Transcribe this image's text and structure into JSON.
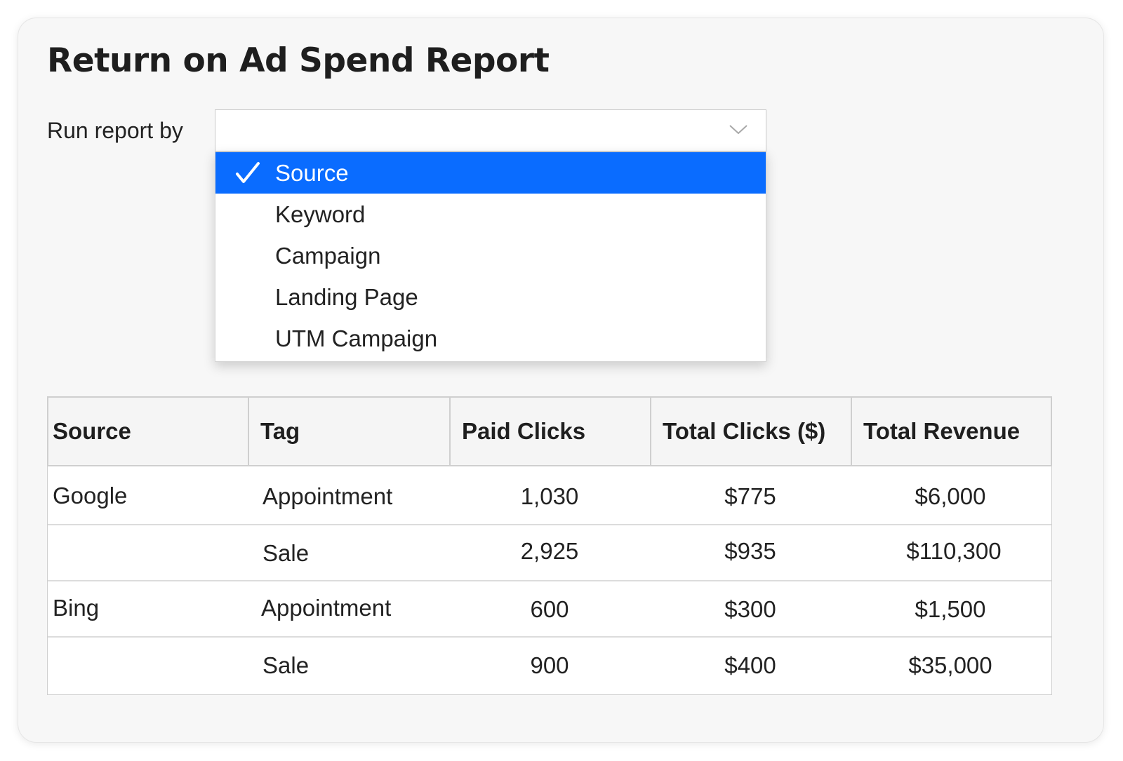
{
  "page": {
    "title": "Return on Ad Spend Report"
  },
  "filter": {
    "label": "Run report by",
    "selected_value": "",
    "options": [
      {
        "label": "Source",
        "selected": true
      },
      {
        "label": "Keyword",
        "selected": false
      },
      {
        "label": "Campaign",
        "selected": false
      },
      {
        "label": "Landing Page",
        "selected": false
      },
      {
        "label": "UTM Campaign",
        "selected": false
      }
    ],
    "icons": {
      "dropdown": "chevron-down-icon",
      "selected": "checkmark-icon"
    },
    "accent_color": "#0a6cff"
  },
  "table": {
    "columns": [
      "Source",
      "Tag",
      "Paid Clicks",
      "Total Clicks ($)",
      "Total Revenue"
    ],
    "rows": [
      {
        "source": "Google",
        "tag": "Appointment",
        "paid_clicks": "1,030",
        "total_clicks": "$775",
        "total_revenue": "$6,000"
      },
      {
        "source": "",
        "tag": "Sale",
        "paid_clicks": "2,925",
        "total_clicks": "$935",
        "total_revenue": "$110,300"
      },
      {
        "source": "Bing",
        "tag": "Appointment",
        "paid_clicks": "600",
        "total_clicks": "$300",
        "total_revenue": "$1,500"
      },
      {
        "source": "",
        "tag": "Sale",
        "paid_clicks": "900",
        "total_clicks": "$400",
        "total_revenue": "$35,000"
      }
    ]
  }
}
